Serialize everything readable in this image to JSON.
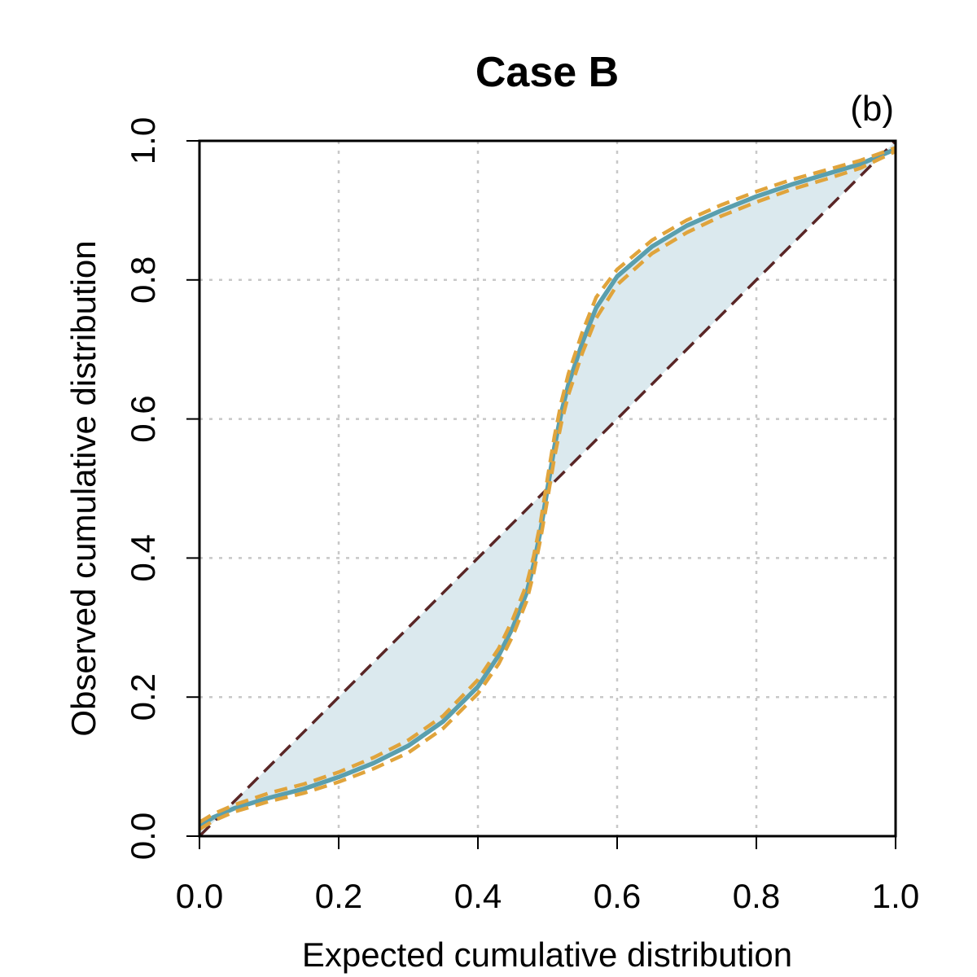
{
  "chart_data": {
    "type": "line",
    "title": "Case B",
    "panel_label": "(b)",
    "xlabel": "Expected cumulative distribution",
    "ylabel": "Observed cumulative distribution",
    "xlim": [
      0,
      1
    ],
    "ylim": [
      0,
      1
    ],
    "grid": true,
    "xticks": [
      0,
      0.2,
      0.4,
      0.6,
      0.8,
      1.0
    ],
    "yticks": [
      0,
      0.2,
      0.4,
      0.6,
      0.8,
      1.0
    ],
    "xtick_labels": [
      "0.0",
      "0.2",
      "0.4",
      "0.6",
      "0.8",
      "1.0"
    ],
    "ytick_labels": [
      "0.0",
      "0.2",
      "0.4",
      "0.6",
      "0.8",
      "1.0"
    ],
    "colors": {
      "observed": "#5a9fae",
      "bounds": "#e0a43c",
      "reference": "#5a2626",
      "fill": "#dbe9ee"
    },
    "series": [
      {
        "name": "reference",
        "style": "dashed",
        "x": [
          0,
          1
        ],
        "y": [
          0,
          1
        ]
      },
      {
        "name": "observed",
        "style": "solid",
        "x": [
          0.0,
          0.02,
          0.05,
          0.1,
          0.15,
          0.2,
          0.25,
          0.3,
          0.35,
          0.4,
          0.43,
          0.45,
          0.47,
          0.48,
          0.49,
          0.5,
          0.51,
          0.52,
          0.53,
          0.55,
          0.57,
          0.6,
          0.65,
          0.7,
          0.75,
          0.8,
          0.85,
          0.9,
          0.95,
          1.0
        ],
        "y": [
          0.015,
          0.027,
          0.04,
          0.055,
          0.068,
          0.085,
          0.105,
          0.13,
          0.165,
          0.215,
          0.26,
          0.3,
          0.35,
          0.39,
          0.44,
          0.5,
          0.56,
          0.61,
          0.65,
          0.71,
          0.76,
          0.805,
          0.848,
          0.878,
          0.9,
          0.92,
          0.937,
          0.952,
          0.967,
          0.988
        ]
      },
      {
        "name": "upper-bound",
        "style": "dashed",
        "x": [
          0.0,
          0.02,
          0.05,
          0.1,
          0.15,
          0.2,
          0.25,
          0.3,
          0.35,
          0.4,
          0.43,
          0.45,
          0.47,
          0.48,
          0.49,
          0.5,
          0.51,
          0.52,
          0.53,
          0.55,
          0.57,
          0.6,
          0.65,
          0.7,
          0.75,
          0.8,
          0.85,
          0.9,
          0.95,
          1.0
        ],
        "y": [
          0.02,
          0.032,
          0.045,
          0.062,
          0.075,
          0.092,
          0.113,
          0.138,
          0.173,
          0.225,
          0.27,
          0.312,
          0.362,
          0.402,
          0.452,
          0.515,
          0.575,
          0.625,
          0.665,
          0.725,
          0.775,
          0.815,
          0.857,
          0.886,
          0.908,
          0.927,
          0.944,
          0.958,
          0.972,
          0.99
        ]
      },
      {
        "name": "lower-bound",
        "style": "dashed",
        "x": [
          0.0,
          0.02,
          0.05,
          0.1,
          0.15,
          0.2,
          0.25,
          0.3,
          0.35,
          0.4,
          0.43,
          0.45,
          0.47,
          0.48,
          0.49,
          0.5,
          0.51,
          0.52,
          0.53,
          0.55,
          0.57,
          0.6,
          0.65,
          0.7,
          0.75,
          0.8,
          0.85,
          0.9,
          0.95,
          1.0
        ],
        "y": [
          0.01,
          0.022,
          0.035,
          0.05,
          0.062,
          0.078,
          0.097,
          0.12,
          0.155,
          0.205,
          0.248,
          0.288,
          0.338,
          0.378,
          0.428,
          0.485,
          0.545,
          0.595,
          0.635,
          0.695,
          0.745,
          0.793,
          0.838,
          0.868,
          0.892,
          0.912,
          0.93,
          0.945,
          0.961,
          0.985
        ]
      }
    ]
  }
}
